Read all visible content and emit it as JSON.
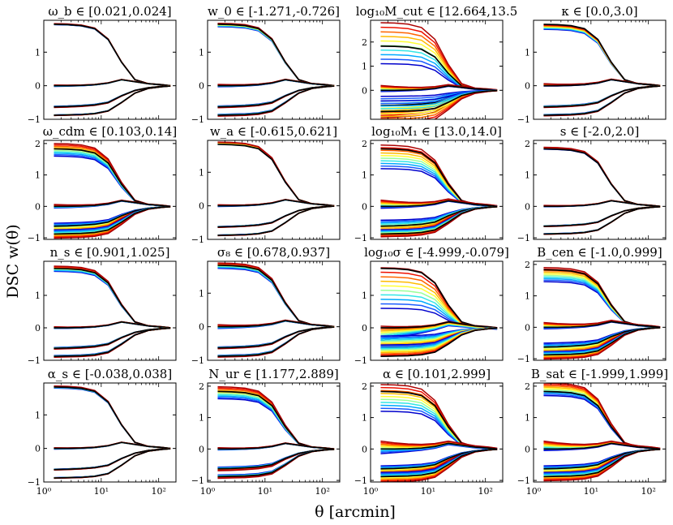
{
  "figure": {
    "ylabel": "DSC w(θ)",
    "xlabel": "θ [arcmin]"
  },
  "chart_data": {
    "type": "line",
    "xscale": "log",
    "xlim": [
      1,
      200
    ],
    "xticks": [
      {
        "value": 1,
        "label": "10⁰"
      },
      {
        "value": 10,
        "label": "10¹"
      },
      {
        "value": 100,
        "label": "10²"
      }
    ],
    "x": [
      1.5,
      2.6,
      4.5,
      7.7,
      13.2,
      22.6,
      38.6,
      66.0,
      112.8,
      160
    ],
    "fiducial": {
      "upper": [
        1.83,
        1.82,
        1.79,
        1.7,
        1.38,
        0.7,
        0.18,
        0.06,
        0.02,
        0.0
      ],
      "mid": [
        0.0,
        0.0,
        0.01,
        0.03,
        0.08,
        0.18,
        0.12,
        0.06,
        0.03,
        0.0
      ],
      "low": [
        -0.63,
        -0.62,
        -0.6,
        -0.57,
        -0.5,
        -0.3,
        -0.14,
        -0.06,
        -0.02,
        -0.01
      ],
      "bottom": [
        -0.88,
        -0.87,
        -0.86,
        -0.83,
        -0.75,
        -0.5,
        -0.22,
        -0.08,
        -0.03,
        -0.01
      ]
    },
    "variation_colors": [
      "#0000cc",
      "#1a5cff",
      "#00aaff",
      "#33e6e6",
      "#99ff99",
      "#ffff33",
      "#ffbb00",
      "#ff6600",
      "#ee1100",
      "#aa0000"
    ],
    "panels": [
      {
        "title": "ω_b ∈ [0.021,0.024]",
        "ylim": [
          -1.0,
          1.95
        ],
        "yticks": [
          -1,
          0,
          1
        ],
        "upper": [
          1.82,
          1.85
        ],
        "mid": [
          -0.02,
          0.02
        ],
        "low": [
          0.97,
          1.03
        ],
        "bottom": [
          0.99,
          1.01
        ]
      },
      {
        "title": "w_0 ∈ [-1.271,-0.726]",
        "ylim": [
          -1.0,
          1.95
        ],
        "yticks": [
          -1,
          0,
          1
        ],
        "upper": [
          1.76,
          1.86
        ],
        "mid": [
          -0.03,
          0.04
        ],
        "low": [
          0.96,
          1.04
        ],
        "bottom": [
          0.97,
          1.03
        ]
      },
      {
        "title": "log₁₀M_cut ∈ [12.664,13.5",
        "ylim": [
          -1.2,
          2.9
        ],
        "yticks": [
          0,
          1,
          2
        ],
        "upper": [
          1.1,
          2.8
        ],
        "mid": [
          -0.05,
          0.2
        ],
        "low": [
          0.4,
          1.8
        ],
        "bottom": [
          0.5,
          1.6
        ]
      },
      {
        "title": "κ ∈ [0.0,3.0]",
        "ylim": [
          -1.0,
          1.95
        ],
        "yticks": [
          -1,
          0,
          1
        ],
        "upper": [
          1.68,
          1.82
        ],
        "mid": [
          -0.01,
          0.06
        ],
        "low": [
          0.96,
          1.03
        ],
        "bottom": [
          0.98,
          1.02
        ]
      },
      {
        "title": "ω_cdm ∈ [0.103,0.14]",
        "ylim": [
          -1.05,
          2.1
        ],
        "yticks": [
          -1,
          0,
          1,
          2
        ],
        "upper": [
          1.6,
          2.0
        ],
        "mid": [
          -0.05,
          0.06
        ],
        "low": [
          0.85,
          1.3
        ],
        "bottom": [
          0.85,
          1.15
        ]
      },
      {
        "title": "w_a ∈ [-0.615,0.621]",
        "ylim": [
          -1.0,
          1.95
        ],
        "yticks": [
          -1,
          0,
          1
        ],
        "upper": [
          1.84,
          1.9
        ],
        "mid": [
          -0.02,
          0.03
        ],
        "low": [
          0.98,
          1.02
        ],
        "bottom": [
          0.99,
          1.01
        ]
      },
      {
        "title": "log₁₀M₁ ∈ [13.0,14.0]",
        "ylim": [
          -1.05,
          2.1
        ],
        "yticks": [
          -1,
          0,
          1,
          2
        ],
        "upper": [
          1.2,
          1.95
        ],
        "mid": [
          -0.06,
          0.2
        ],
        "low": [
          0.7,
          1.3
        ],
        "bottom": [
          0.85,
          1.1
        ]
      },
      {
        "title": "s ∈ [-2.0,2.0]",
        "ylim": [
          -1.05,
          2.1
        ],
        "yticks": [
          -1,
          0,
          1,
          2
        ],
        "upper": [
          1.82,
          1.88
        ],
        "mid": [
          -0.01,
          0.03
        ],
        "low": [
          0.98,
          1.02
        ],
        "bottom": [
          0.99,
          1.01
        ]
      },
      {
        "title": "n_s ∈ [0.901,1.025]",
        "ylim": [
          -1.0,
          2.05
        ],
        "yticks": [
          -1,
          0,
          1
        ],
        "upper": [
          1.74,
          1.9
        ],
        "mid": [
          -0.02,
          0.03
        ],
        "low": [
          0.96,
          1.04
        ],
        "bottom": [
          0.97,
          1.03
        ]
      },
      {
        "title": "σ₈ ∈ [0.678,0.937]",
        "ylim": [
          -1.0,
          1.95
        ],
        "yticks": [
          -1,
          0,
          1
        ],
        "upper": [
          1.74,
          1.9
        ],
        "mid": [
          -0.05,
          0.06
        ],
        "low": [
          0.96,
          1.04
        ],
        "bottom": [
          0.97,
          1.03
        ]
      },
      {
        "title": "log₁₀σ ∈ [-4.999,-0.079]",
        "ylim": [
          -1.0,
          2.05
        ],
        "yticks": [
          -1,
          0,
          1
        ],
        "upper": [
          0.6,
          1.85
        ],
        "mid": [
          -0.4,
          0.05
        ],
        "low": [
          0.4,
          1.0
        ],
        "bottom": [
          0.6,
          1.0
        ]
      },
      {
        "title": "B_cen ∈ [-1.0,0.999]",
        "ylim": [
          -1.05,
          2.1
        ],
        "yticks": [
          -1,
          0,
          1,
          2
        ],
        "upper": [
          1.45,
          1.9
        ],
        "mid": [
          -0.05,
          0.15
        ],
        "low": [
          0.8,
          1.35
        ],
        "bottom": [
          0.88,
          1.15
        ]
      },
      {
        "title": "α_s ∈ [-0.038,0.038]",
        "ylim": [
          -1.0,
          1.95
        ],
        "yticks": [
          -1,
          0,
          1
        ],
        "upper": [
          1.8,
          1.86
        ],
        "mid": [
          -0.02,
          0.02
        ],
        "low": [
          0.98,
          1.02
        ],
        "bottom": [
          0.99,
          1.01
        ]
      },
      {
        "title": "N_ur ∈ [1.177,2.889]",
        "ylim": [
          -1.05,
          2.1
        ],
        "yticks": [
          -1,
          0,
          1,
          2
        ],
        "upper": [
          1.6,
          1.98
        ],
        "mid": [
          -0.03,
          0.04
        ],
        "low": [
          0.92,
          1.1
        ],
        "bottom": [
          0.94,
          1.06
        ]
      },
      {
        "title": "α ∈ [0.101,2.999]",
        "ylim": [
          -1.05,
          2.1
        ],
        "yticks": [
          -1,
          0,
          1,
          2
        ],
        "upper": [
          1.2,
          2.05
        ],
        "mid": [
          -0.15,
          0.25
        ],
        "low": [
          0.85,
          1.25
        ],
        "bottom": [
          0.85,
          1.2
        ]
      },
      {
        "title": "B_sat ∈ [-1.999,1.999]",
        "ylim": [
          -1.05,
          2.1
        ],
        "yticks": [
          -1,
          0,
          1,
          2
        ],
        "upper": [
          1.7,
          2.1
        ],
        "mid": [
          -0.05,
          0.25
        ],
        "low": [
          0.85,
          1.3
        ],
        "bottom": [
          0.85,
          1.15
        ]
      }
    ]
  }
}
